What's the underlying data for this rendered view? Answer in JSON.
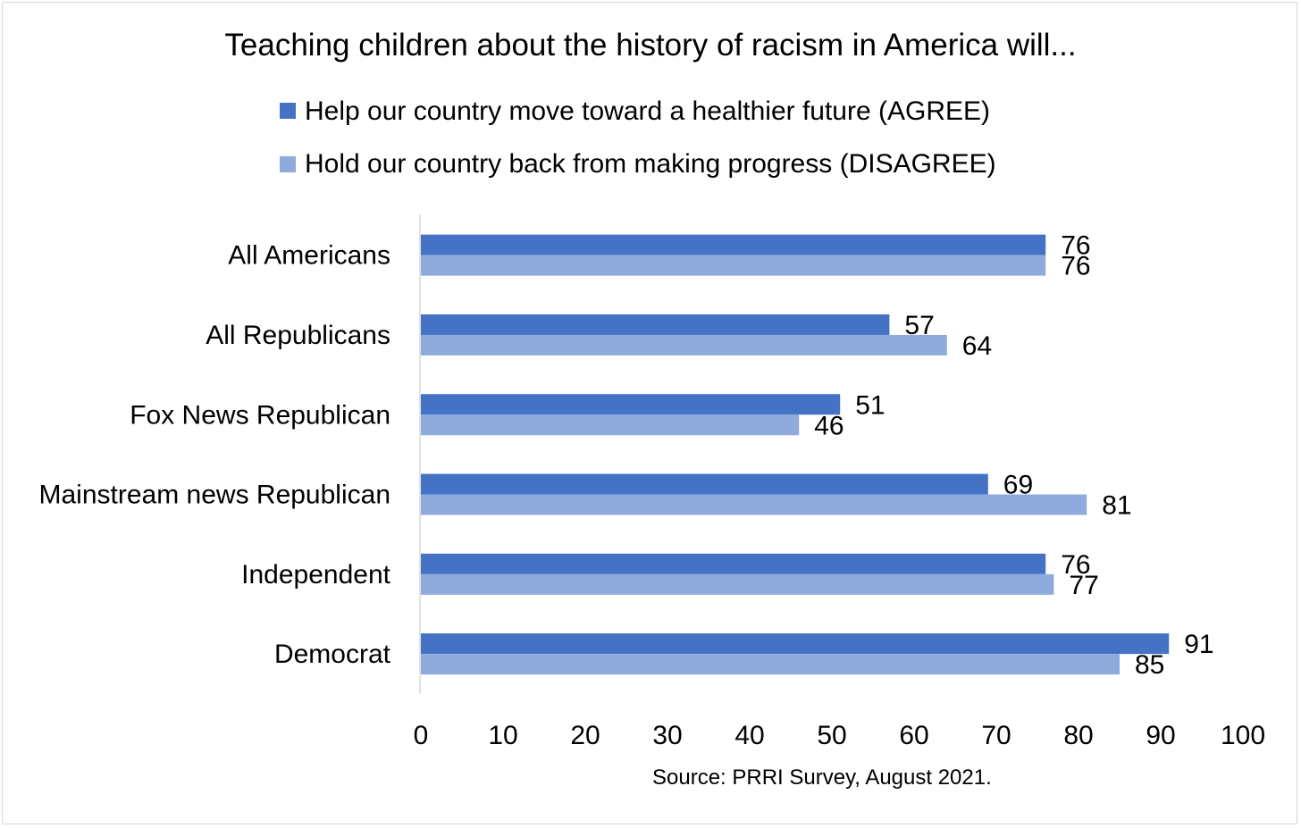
{
  "chart_data": {
    "type": "bar",
    "orientation": "horizontal",
    "title": "Teaching children about the history of racism in America will...",
    "categories": [
      "All Americans",
      "All Republicans",
      "Fox News Republican",
      "Mainstream news Republican",
      "Independent",
      "Democrat"
    ],
    "series": [
      {
        "name": "Help our country move toward a healthier future (AGREE)",
        "color": "#4472c4",
        "values": [
          76,
          57,
          51,
          69,
          76,
          91
        ]
      },
      {
        "name": "Hold our country back from making progress (DISAGREE)",
        "color": "#8faadc",
        "values": [
          76,
          64,
          46,
          81,
          77,
          85
        ]
      }
    ],
    "xlim": [
      0,
      100
    ],
    "xticks": [
      0,
      10,
      20,
      30,
      40,
      50,
      60,
      70,
      80,
      90,
      100
    ],
    "grid": false,
    "legend_position": "top",
    "data_labels": true,
    "source": "Source: PRRI Survey, August 2021."
  }
}
